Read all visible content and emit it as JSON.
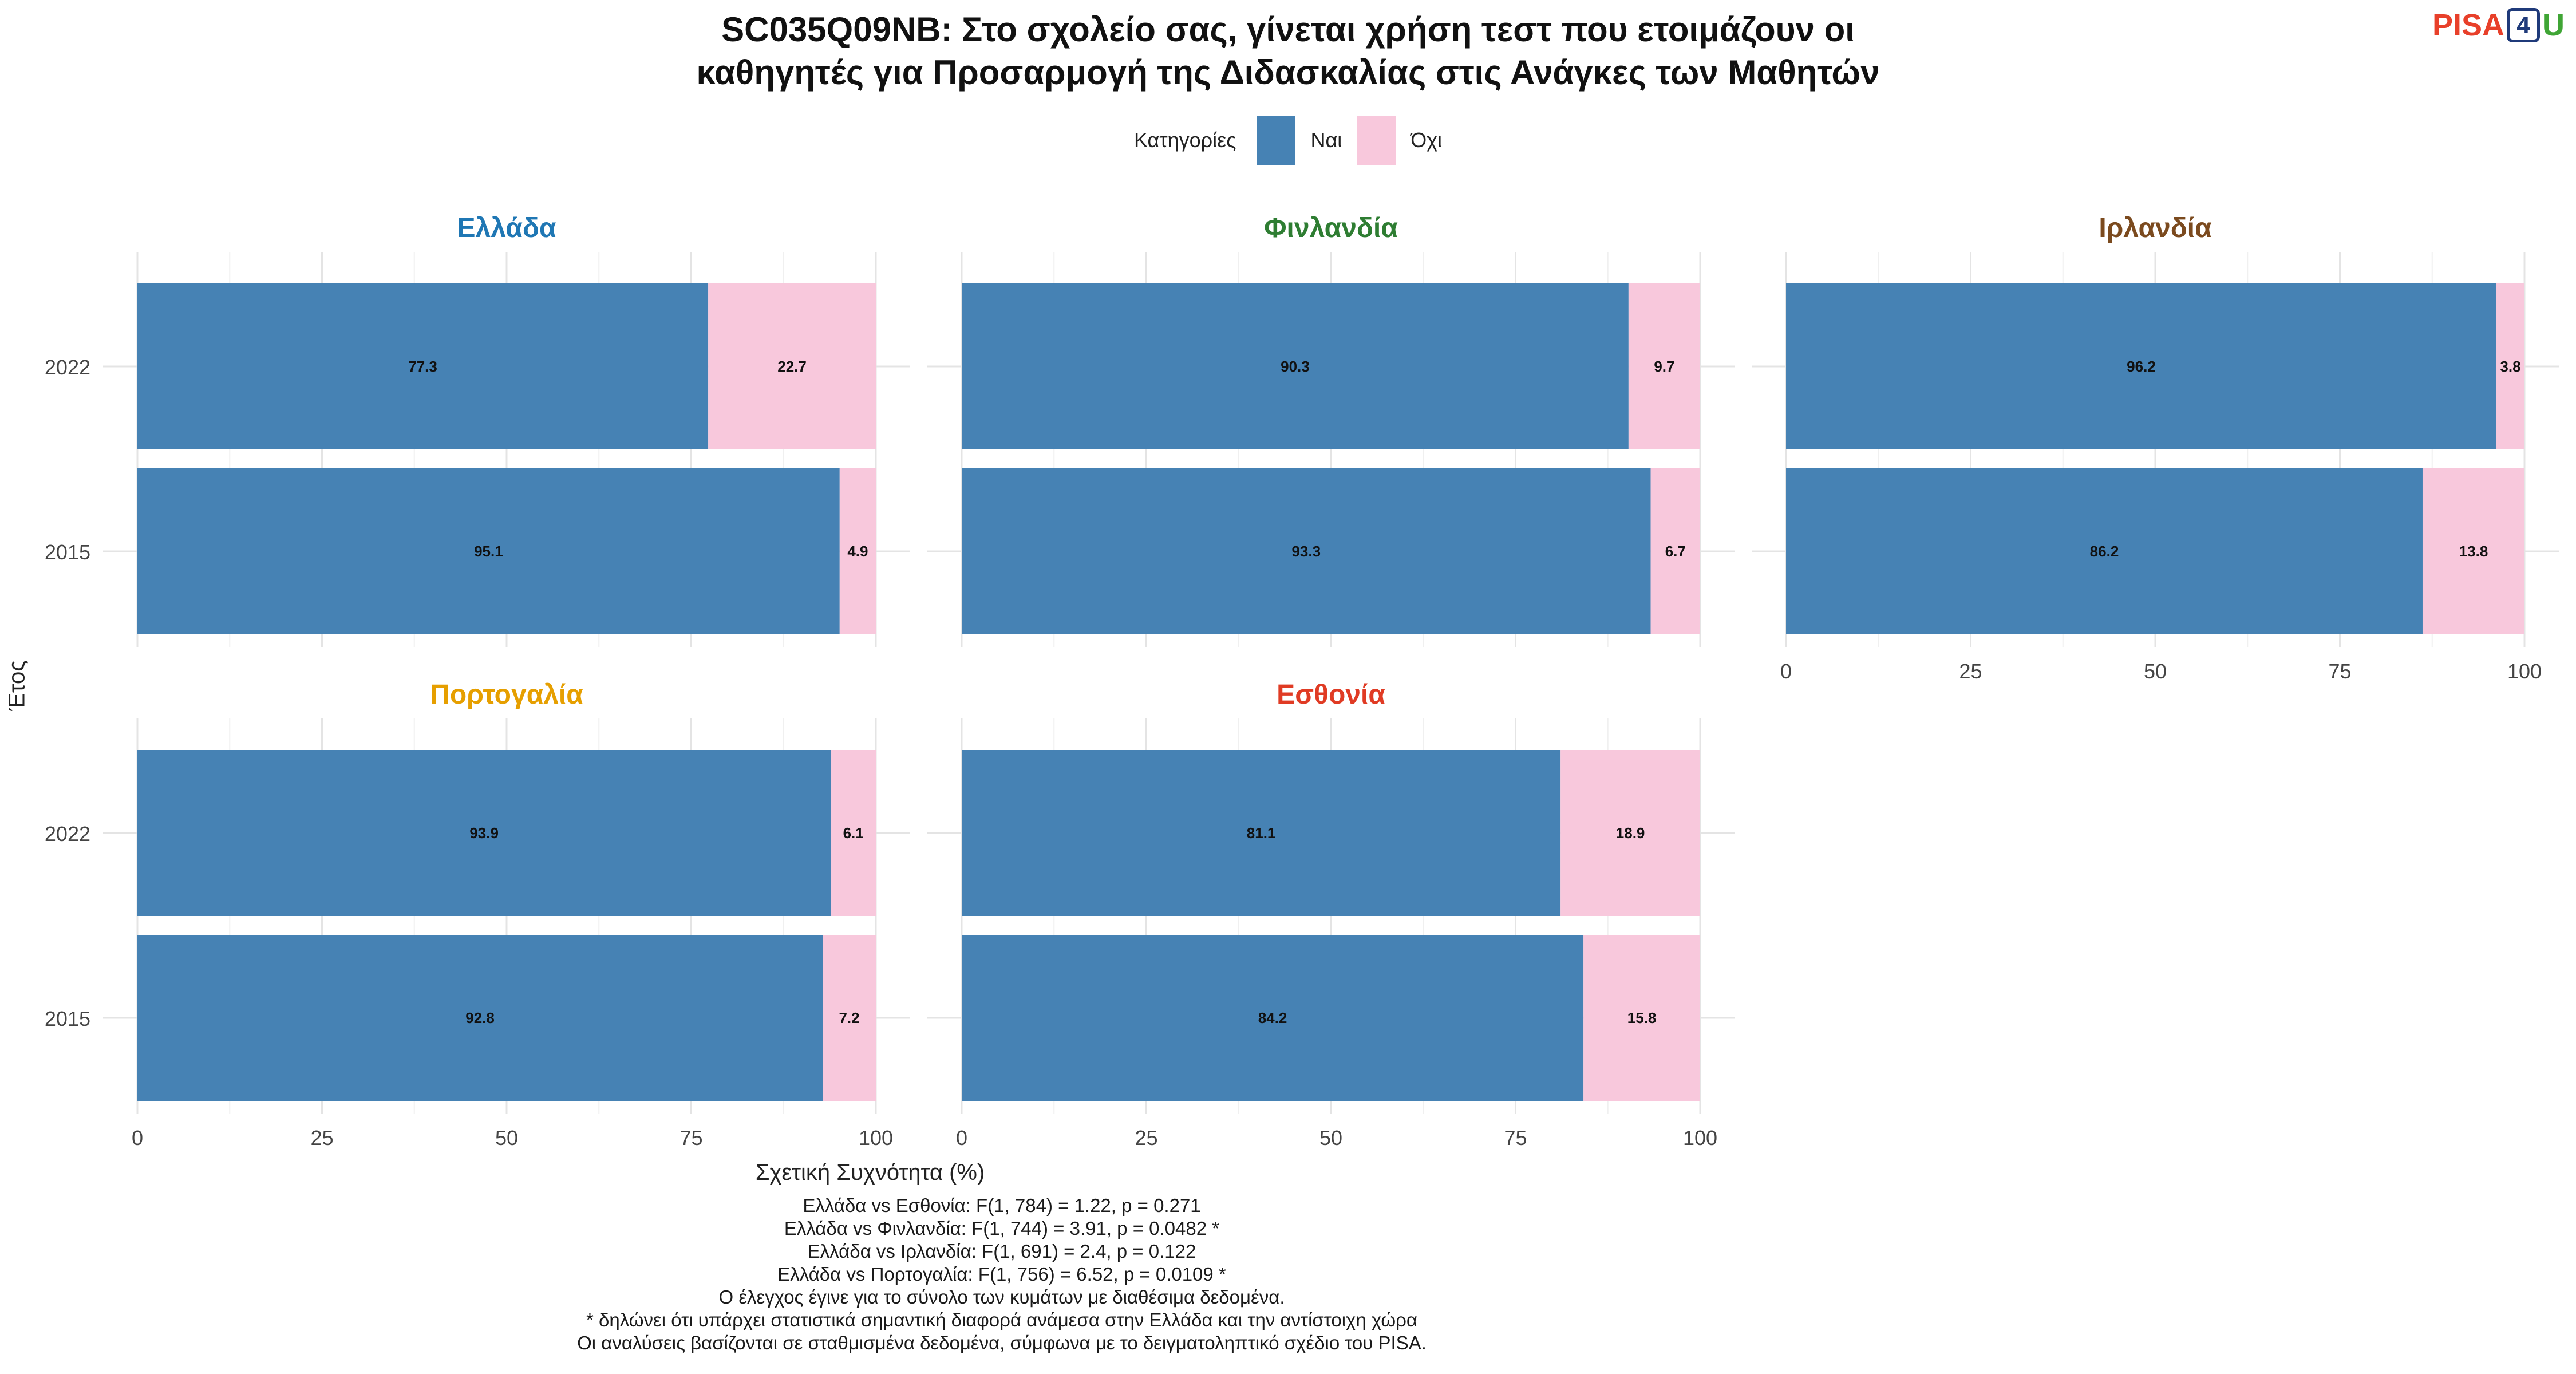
{
  "title": [
    "SC035Q09NB: Στο σχολείο σας, γίνεται χρήση τεστ που ετοιμάζουν οι",
    "καθηγητές για Προσαρμογή της Διδασκαλίας στις Ανάγκες των Μαθητών"
  ],
  "logo": {
    "pisa": "PISA",
    "four": "4",
    "u": "U"
  },
  "legend": {
    "title": "Κατηγορίες",
    "items": [
      {
        "label": "Ναι",
        "color": "#4682b4"
      },
      {
        "label": "Όχι",
        "color": "#f8c8dc"
      }
    ]
  },
  "chart_data": {
    "type": "bar",
    "orientation": "horizontal",
    "stacked": true,
    "xlabel": "Σχετική Συχνότητα (%)",
    "ylabel": "Έτος",
    "xlim": [
      0,
      100
    ],
    "xticks": [
      "0",
      "25",
      "50",
      "75",
      "100"
    ],
    "categories": [
      "2022",
      "2015"
    ],
    "series_names": [
      "Ναι",
      "Όχι"
    ],
    "grid": true,
    "legend_position": "top",
    "panels": [
      {
        "country": "Ελλάδα",
        "color": "#1f77b4",
        "rows": [
          {
            "year": "2022",
            "yes": 77.3,
            "no": 22.7
          },
          {
            "year": "2015",
            "yes": 95.1,
            "no": 4.9
          }
        ]
      },
      {
        "country": "Φινλανδία",
        "color": "#2e7d32",
        "rows": [
          {
            "year": "2022",
            "yes": 90.3,
            "no": 9.7
          },
          {
            "year": "2015",
            "yes": 93.3,
            "no": 6.7
          }
        ]
      },
      {
        "country": "Ιρλανδία",
        "color": "#7b4a1e",
        "rows": [
          {
            "year": "2022",
            "yes": 96.2,
            "no": 3.8
          },
          {
            "year": "2015",
            "yes": 86.2,
            "no": 13.8
          }
        ]
      },
      {
        "country": "Πορτογαλία",
        "color": "#e69f00",
        "rows": [
          {
            "year": "2022",
            "yes": 93.9,
            "no": 6.1
          },
          {
            "year": "2015",
            "yes": 92.8,
            "no": 7.2
          }
        ]
      },
      {
        "country": "Εσθονία",
        "color": "#e03b24",
        "rows": [
          {
            "year": "2022",
            "yes": 81.1,
            "no": 18.9
          },
          {
            "year": "2015",
            "yes": 84.2,
            "no": 15.8
          }
        ]
      }
    ]
  },
  "notes": [
    "Ελλάδα vs Εσθονία: F(1, 784) = 1.22, p = 0.271",
    "Ελλάδα vs Φινλανδία: F(1, 744) = 3.91, p = 0.0482 *",
    "Ελλάδα vs Ιρλανδία: F(1, 691) = 2.4, p = 0.122",
    "Ελλάδα vs Πορτογαλία: F(1, 756) = 6.52, p = 0.0109 *",
    "Ο έλεγχος έγινε για το σύνολο των κυμάτων με διαθέσιμα δεδομένα.",
    "* δηλώνει ότι υπάρχει στατιστικά σημαντική διαφορά ανάμεσα στην Ελλάδα και την αντίστοιχη χώρα",
    "Οι αναλύσεις βασίζονται σε σταθμισμένα δεδομένα, σύμφωνα με το δειγματοληπτικό σχέδιο του PISA."
  ]
}
